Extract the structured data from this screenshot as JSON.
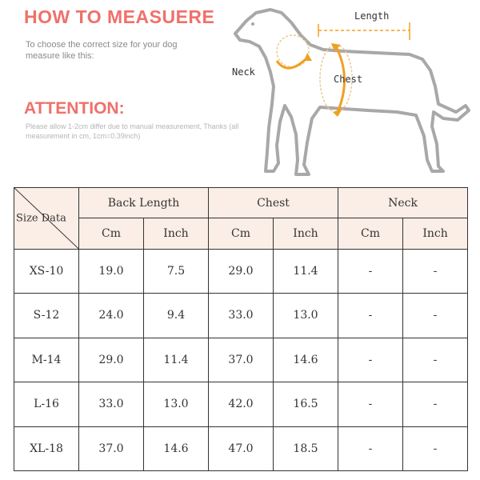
{
  "header": {
    "title": "HOW TO MEASUERE",
    "subtitle": "To choose the correct size for your dog measure like this:"
  },
  "attention": {
    "title": "ATTENTION:",
    "text": "Please allow 1-2cm differ due to manual measurement, Thanks (all measurement in cm, 1cm=0.39inch)"
  },
  "diagram": {
    "length_label": "Length",
    "neck_label": "Neck",
    "chest_label": "Chest",
    "accent_color": "#f0a020"
  },
  "table": {
    "corner": "Size Data",
    "groups": [
      "Back Length",
      "Chest",
      "Neck"
    ],
    "units": [
      "Cm",
      "Inch",
      "Cm",
      "Inch",
      "Cm",
      "Inch"
    ],
    "rows": [
      {
        "size": "XS-10",
        "cells": [
          "19.0",
          "7.5",
          "29.0",
          "11.4",
          "-",
          "-"
        ]
      },
      {
        "size": "S-12",
        "cells": [
          "24.0",
          "9.4",
          "33.0",
          "13.0",
          "-",
          "-"
        ]
      },
      {
        "size": "M-14",
        "cells": [
          "29.0",
          "11.4",
          "37.0",
          "14.6",
          "-",
          "-"
        ]
      },
      {
        "size": "L-16",
        "cells": [
          "33.0",
          "13.0",
          "42.0",
          "16.5",
          "-",
          "-"
        ]
      },
      {
        "size": "XL-18",
        "cells": [
          "37.0",
          "14.6",
          "47.0",
          "18.5",
          "-",
          "-"
        ]
      }
    ]
  }
}
